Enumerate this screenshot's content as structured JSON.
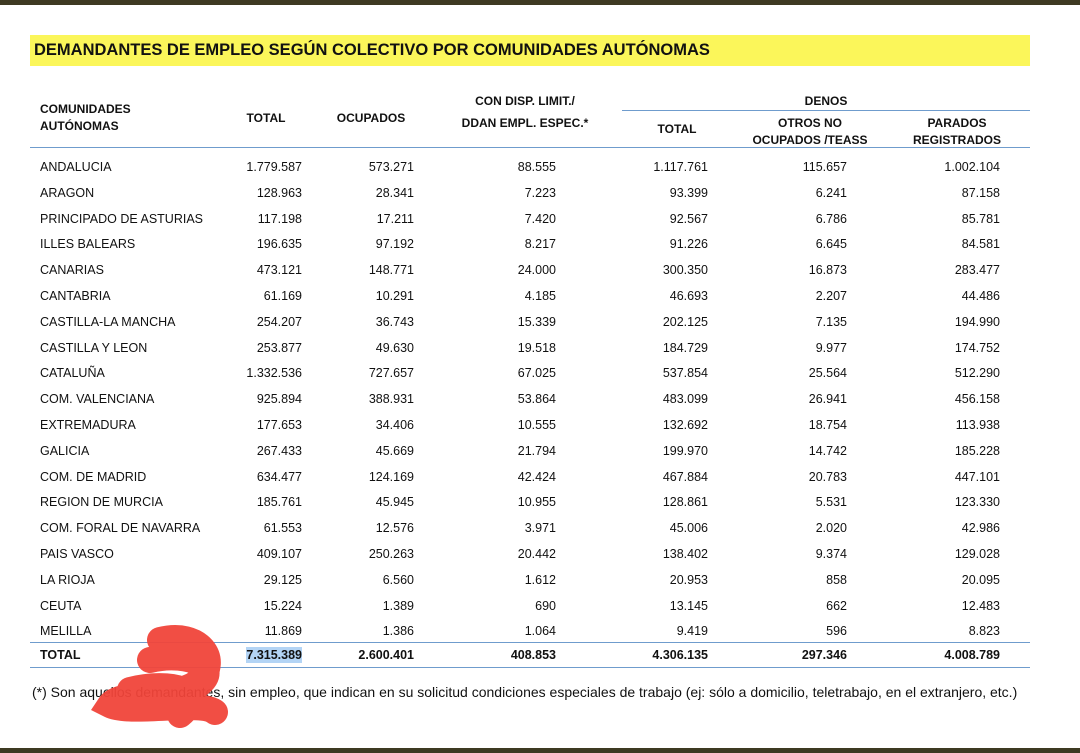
{
  "title": "DEMANDANTES DE EMPLEO SEGÚN COLECTIVO POR COMUNIDADES AUTÓNOMAS",
  "header": {
    "region": [
      "COMUNIDADES",
      "AUTÓNOMAS"
    ],
    "total": "TOTAL",
    "ocupados": "OCUPADOS",
    "con_disp": [
      "CON DISP. LIMIT./",
      "DDAN EMPL. ESPEC.*"
    ],
    "denos": "DENOS",
    "denos_total": "TOTAL",
    "otros": [
      "OTROS NO",
      "OCUPADOS /TEASS"
    ],
    "parados": [
      "PARADOS",
      "REGISTRADOS"
    ]
  },
  "table": {
    "rows": [
      [
        "ANDALUCIA",
        "1.779.587",
        "573.271",
        "88.555",
        "1.117.761",
        "115.657",
        "1.002.104"
      ],
      [
        "ARAGON",
        "128.963",
        "28.341",
        "7.223",
        "93.399",
        "6.241",
        "87.158"
      ],
      [
        "PRINCIPADO DE ASTURIAS",
        "117.198",
        "17.211",
        "7.420",
        "92.567",
        "6.786",
        "85.781"
      ],
      [
        "ILLES BALEARS",
        "196.635",
        "97.192",
        "8.217",
        "91.226",
        "6.645",
        "84.581"
      ],
      [
        "CANARIAS",
        "473.121",
        "148.771",
        "24.000",
        "300.350",
        "16.873",
        "283.477"
      ],
      [
        "CANTABRIA",
        "61.169",
        "10.291",
        "4.185",
        "46.693",
        "2.207",
        "44.486"
      ],
      [
        "CASTILLA-LA MANCHA",
        "254.207",
        "36.743",
        "15.339",
        "202.125",
        "7.135",
        "194.990"
      ],
      [
        "CASTILLA Y LEON",
        "253.877",
        "49.630",
        "19.518",
        "184.729",
        "9.977",
        "174.752"
      ],
      [
        "CATALUÑA",
        "1.332.536",
        "727.657",
        "67.025",
        "537.854",
        "25.564",
        "512.290"
      ],
      [
        "COM. VALENCIANA",
        "925.894",
        "388.931",
        "53.864",
        "483.099",
        "26.941",
        "456.158"
      ],
      [
        "EXTREMADURA",
        "177.653",
        "34.406",
        "10.555",
        "132.692",
        "18.754",
        "113.938"
      ],
      [
        "GALICIA",
        "267.433",
        "45.669",
        "21.794",
        "199.970",
        "14.742",
        "185.228"
      ],
      [
        "COM. DE MADRID",
        "634.477",
        "124.169",
        "42.424",
        "467.884",
        "20.783",
        "447.101"
      ],
      [
        "REGION DE MURCIA",
        "185.761",
        "45.945",
        "10.955",
        "128.861",
        "5.531",
        "123.330"
      ],
      [
        "COM. FORAL DE NAVARRA",
        "61.553",
        "12.576",
        "3.971",
        "45.006",
        "2.020",
        "42.986"
      ],
      [
        "PAIS VASCO",
        "409.107",
        "250.263",
        "20.442",
        "138.402",
        "9.374",
        "129.028"
      ],
      [
        "LA RIOJA",
        "29.125",
        "6.560",
        "1.612",
        "20.953",
        "858",
        "20.095"
      ],
      [
        "CEUTA",
        "15.224",
        "1.389",
        "690",
        "13.145",
        "662",
        "12.483"
      ],
      [
        "MELILLA",
        "11.869",
        "1.386",
        "1.064",
        "9.419",
        "596",
        "8.823"
      ]
    ],
    "total": [
      "TOTAL",
      "7.315.389",
      "2.600.401",
      "408.853",
      "4.306.135",
      "297.346",
      "4.008.789"
    ]
  },
  "footnote": "(*) Son aquellos demandantes, sin empleo, que indican en su solicitud condiciones especiales de trabajo (ej: sólo a domicilio, teletrabajo, en el extranjero, etc.)"
}
